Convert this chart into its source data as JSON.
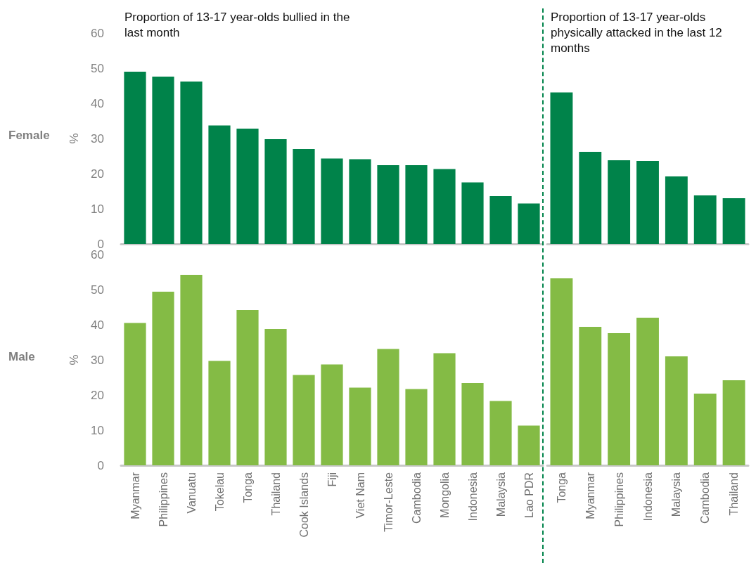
{
  "chart_data": [
    {
      "type": "bar",
      "title": "Proportion of 13-17 year-olds bullied in the last month",
      "ylabel": "%",
      "annotations": [
        "Female"
      ],
      "values": [
        49.0,
        47.6,
        46.2,
        33.7,
        32.8,
        29.8,
        27.0,
        24.3,
        24.1,
        22.4,
        22.4,
        21.3,
        17.5,
        13.6,
        11.5
      ],
      "color": "#00834a",
      "ylim": [
        0,
        60
      ],
      "yticks": [
        0,
        10,
        20,
        30,
        40,
        50,
        60
      ],
      "tick_labels": "y"
    },
    {
      "type": "bar",
      "title": "Proportion of 13-17 year-olds physically attacked in the last 12 months",
      "values": [
        43.1,
        26.2,
        23.8,
        23.6,
        19.2,
        13.8,
        13.0
      ],
      "color": "#00834a",
      "ylim": [
        0,
        60
      ],
      "yticks": [
        0,
        10,
        20,
        30,
        40,
        50,
        60
      ],
      "tick_labels": false
    },
    {
      "type": "bar",
      "ylabel": "%",
      "annotations": [
        "Male"
      ],
      "categories": [
        "Myanmar",
        "Philippines",
        "Vanuatu",
        "Tokelau",
        "Tonga",
        "Thailand",
        "Cook Islands",
        "Fiji",
        "Viet Nam",
        "Timor-Leste",
        "Cambodia",
        "Mongolia",
        "Indonesia",
        "Malaysia",
        "Lao PDR"
      ],
      "values": [
        40.5,
        49.4,
        54.2,
        29.7,
        44.2,
        38.8,
        25.7,
        28.7,
        22.1,
        33.1,
        21.7,
        31.9,
        23.4,
        18.3,
        11.3
      ],
      "color": "#84bb45",
      "ylim": [
        0,
        60
      ],
      "yticks": [
        0,
        10,
        20,
        30,
        40,
        50,
        60
      ]
    },
    {
      "type": "bar",
      "categories": [
        "Tonga",
        "Myanmar",
        "Philippines",
        "Indonesia",
        "Malaysia",
        "Cambodia",
        "Thailand"
      ],
      "values": [
        53.2,
        39.4,
        37.6,
        42.0,
        31.0,
        20.4,
        24.2
      ],
      "color": "#84bb45",
      "ylim": [
        0,
        60
      ],
      "yticks": [
        0,
        10,
        20,
        30,
        40,
        50,
        60
      ],
      "tick_labels": "x"
    }
  ]
}
